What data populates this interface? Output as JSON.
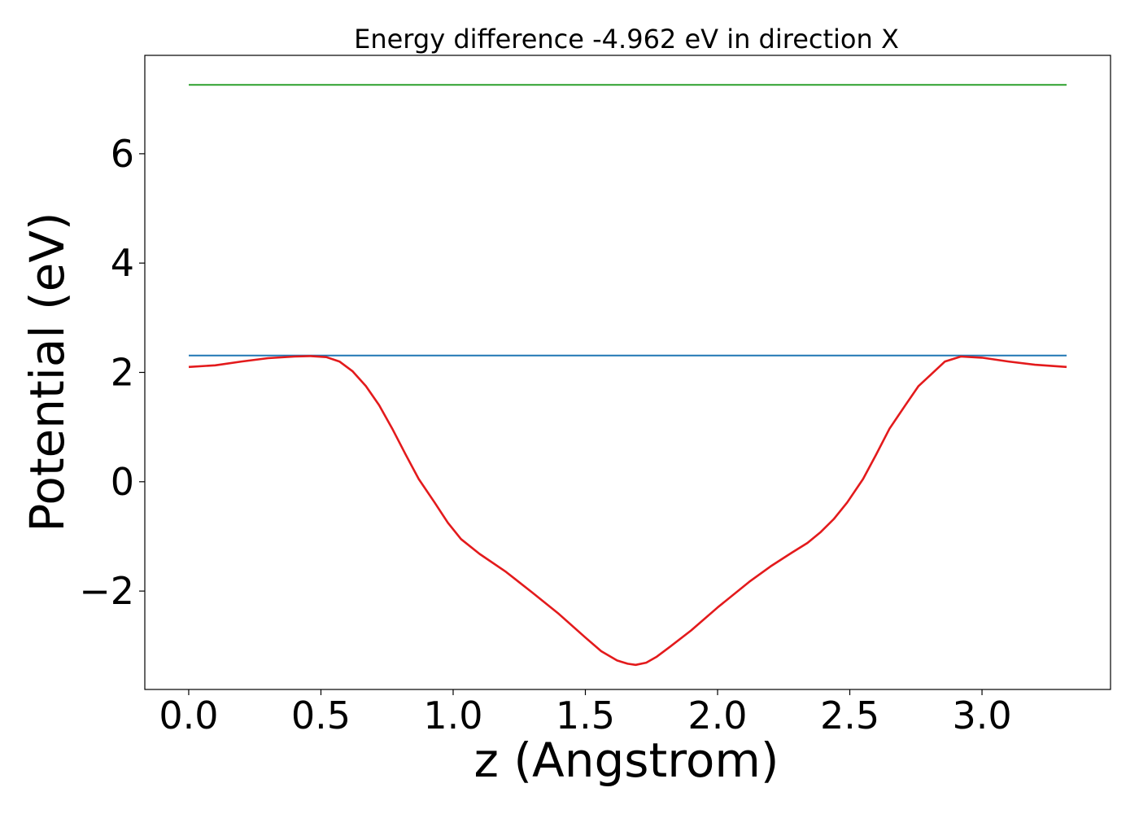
{
  "chart_data": {
    "type": "line",
    "title": "Energy difference -4.962 eV in direction X",
    "xlabel": "z (Angstrom)",
    "ylabel": "Potential (eV)",
    "xlim": [
      -0.166,
      3.486
    ],
    "ylim": [
      -3.8,
      7.8
    ],
    "xticks": [
      0.0,
      0.5,
      1.0,
      1.5,
      2.0,
      2.5,
      3.0
    ],
    "xtick_labels": [
      "0.0",
      "0.5",
      "1.0",
      "1.5",
      "2.0",
      "2.5",
      "3.0"
    ],
    "yticks": [
      -2,
      0,
      2,
      4,
      6
    ],
    "ytick_labels": [
      "−2",
      "0",
      "2",
      "4",
      "6"
    ],
    "grid": false,
    "series": [
      {
        "color": "#2ca02c",
        "x": [
          0.0,
          3.32
        ],
        "y": [
          7.26,
          7.26
        ]
      },
      {
        "color": "#1f77b4",
        "x": [
          0.0,
          3.32
        ],
        "y": [
          2.31,
          2.31
        ]
      },
      {
        "color": "#e31a1c",
        "x": [
          0.0,
          0.1,
          0.2,
          0.3,
          0.4,
          0.46,
          0.52,
          0.57,
          0.62,
          0.67,
          0.72,
          0.77,
          0.82,
          0.87,
          0.93,
          0.98,
          1.03,
          1.1,
          1.2,
          1.3,
          1.4,
          1.5,
          1.56,
          1.62,
          1.66,
          1.69,
          1.73,
          1.77,
          1.82,
          1.9,
          2.0,
          2.12,
          2.2,
          2.28,
          2.34,
          2.39,
          2.44,
          2.49,
          2.55,
          2.6,
          2.65,
          2.71,
          2.76,
          2.82,
          2.86,
          2.92,
          3.0,
          3.1,
          3.2,
          3.32
        ],
        "y": [
          2.1,
          2.13,
          2.2,
          2.26,
          2.29,
          2.3,
          2.28,
          2.2,
          2.02,
          1.75,
          1.4,
          0.97,
          0.5,
          0.05,
          -0.38,
          -0.75,
          -1.05,
          -1.32,
          -1.65,
          -2.03,
          -2.42,
          -2.85,
          -3.1,
          -3.27,
          -3.33,
          -3.35,
          -3.31,
          -3.2,
          -3.02,
          -2.72,
          -2.3,
          -1.83,
          -1.55,
          -1.3,
          -1.12,
          -0.92,
          -0.68,
          -0.38,
          0.05,
          0.5,
          0.97,
          1.4,
          1.75,
          2.02,
          2.2,
          2.29,
          2.27,
          2.2,
          2.14,
          2.1
        ]
      }
    ]
  }
}
